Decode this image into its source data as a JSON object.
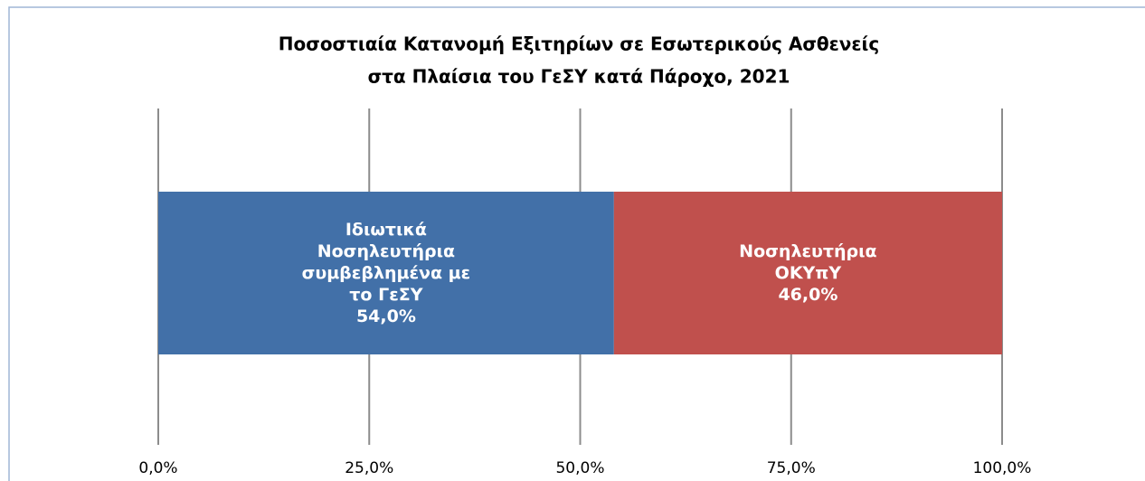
{
  "chart_data": {
    "type": "stacked_bar_horizontal",
    "title": [
      "Ποσοστιαία Κατανομή Εξιτηρίων σε Εσωτερικούς Ασθενείς",
      "στα Πλαίσια του ΓεΣΥ κατά Πάροχο, 2021"
    ],
    "series": [
      {
        "name": "Ιδιωτικά Νοσηλευτήρια συμβεβλημένα με το ΓεΣΥ",
        "color": "#4270a8",
        "values": [
          54
        ],
        "value_labels": [
          "54,0%"
        ]
      },
      {
        "name": "Νοσηλευτήρια ΟΚΥπΥ",
        "color": "#c0504d",
        "values": [
          46
        ],
        "value_labels": [
          "46,0%"
        ]
      }
    ],
    "xlim": [
      0,
      100
    ],
    "xticks": [
      {
        "value": 0,
        "label": "0,0%"
      },
      {
        "value": 25,
        "label": "25,0%"
      },
      {
        "value": 50,
        "label": "50,0%"
      },
      {
        "value": 75,
        "label": "75,0%"
      },
      {
        "value": 100,
        "label": "100,0%"
      }
    ],
    "grid": true
  }
}
